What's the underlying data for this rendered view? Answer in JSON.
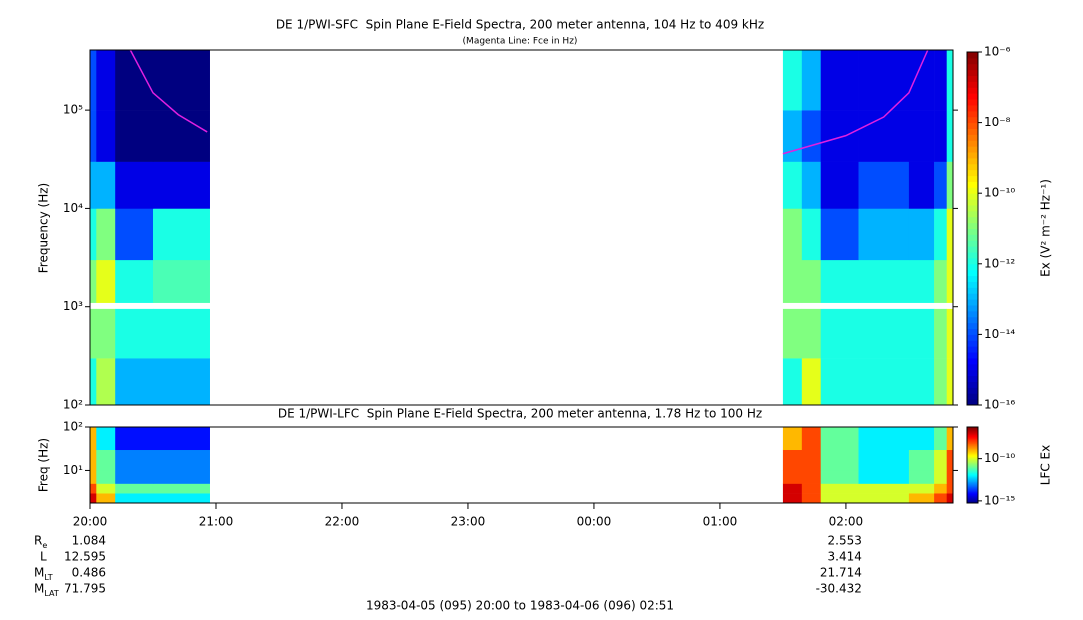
{
  "chart_data": [
    {
      "type": "heatmap",
      "title": "DE 1/PWI-SFC  Spin Plane E-Field Spectra, 200 meter antenna, 104 Hz to 409 kHz",
      "subtitle": "(Magenta Line: Fce in Hz)",
      "ylabel": "Frequency (Hz)",
      "log_y": true,
      "xlim": [
        0,
        6.85
      ],
      "ylim": [
        100,
        409000
      ],
      "yticks": [
        {
          "value": 100,
          "label": "10²"
        },
        {
          "value": 1000,
          "label": "10³"
        },
        {
          "value": 10000,
          "label": "10⁴"
        },
        {
          "value": 100000,
          "label": "10⁵"
        }
      ],
      "x_edges": [
        0,
        0.05,
        0.2,
        0.5,
        0.95,
        5.5,
        5.65,
        5.8,
        6.1,
        6.5,
        6.7,
        6.8,
        6.85
      ],
      "y_edges": [
        100,
        300,
        950,
        1100,
        3000,
        10000,
        30000,
        100000,
        409000
      ],
      "z": [
        [
          1e-12,
          3e-11,
          1e-13,
          1e-13,
          null,
          1e-12,
          1e-10,
          1e-12,
          1e-12,
          1e-12,
          1e-11,
          1e-10
        ],
        [
          1e-11,
          1e-11,
          1e-12,
          1e-12,
          null,
          1e-11,
          1e-11,
          1e-12,
          1e-12,
          1e-12,
          1e-11,
          1e-10
        ],
        [
          null,
          null,
          null,
          null,
          null,
          null,
          null,
          null,
          null,
          null,
          null,
          null
        ],
        [
          1e-11,
          1e-10,
          1e-12,
          3e-12,
          null,
          1e-11,
          1e-11,
          1e-12,
          1e-12,
          1e-12,
          1e-11,
          1e-10
        ],
        [
          1e-12,
          1e-11,
          1e-14,
          1e-12,
          null,
          1e-11,
          1e-12,
          1e-14,
          1e-13,
          1e-13,
          1e-12,
          1e-10
        ],
        [
          1e-13,
          1e-13,
          1e-15,
          1e-15,
          null,
          1e-12,
          1e-13,
          1e-15,
          1e-14,
          1e-15,
          1e-14,
          1e-11
        ],
        [
          1e-14,
          1e-15,
          1e-16,
          1e-16,
          null,
          1e-13,
          1e-14,
          1e-15,
          1e-15,
          1e-15,
          1e-15,
          1e-12
        ],
        [
          1e-14,
          1e-15,
          1e-16,
          1e-16,
          null,
          1e-12,
          1e-13,
          1e-15,
          1e-15,
          1e-15,
          1e-15,
          1e-12
        ]
      ],
      "colorbar": {
        "label": "Ex (V² m⁻² Hz⁻¹)",
        "log": true,
        "lim": [
          1e-16,
          1e-06
        ],
        "ticks": [
          {
            "value": 1e-16,
            "label": "10⁻¹⁶"
          },
          {
            "value": 1e-14,
            "label": "10⁻¹⁴"
          },
          {
            "value": 1e-12,
            "label": "10⁻¹²"
          },
          {
            "value": 1e-10,
            "label": "10⁻¹⁰"
          },
          {
            "value": 1e-08,
            "label": "10⁻⁸"
          },
          {
            "value": 1e-06,
            "label": "10⁻⁶"
          }
        ]
      },
      "fce": {
        "color": "#e020e0",
        "segments": [
          {
            "x": [
              0.32,
              0.5,
              0.7,
              0.93
            ],
            "values": [
              409000,
              150000,
              90000,
              60000
            ]
          },
          {
            "x": [
              5.5,
              6.0,
              6.3,
              6.5,
              6.65
            ],
            "values": [
              36000,
              55000,
              85000,
              150000,
              409000
            ]
          }
        ]
      }
    },
    {
      "type": "heatmap",
      "title": "DE 1/PWI-LFC  Spin Plane E-Field Spectra, 200 meter antenna, 1.78 Hz to 100 Hz",
      "ylabel": "Freq (Hz)",
      "log_y": true,
      "xlim": [
        0,
        6.85
      ],
      "xticks": [
        {
          "value": 0,
          "label": "20:00"
        },
        {
          "value": 1,
          "label": "21:00"
        },
        {
          "value": 2,
          "label": "22:00"
        },
        {
          "value": 3,
          "label": "23:00"
        },
        {
          "value": 4,
          "label": "00:00"
        },
        {
          "value": 5,
          "label": "01:00"
        },
        {
          "value": 6,
          "label": "02:00"
        }
      ],
      "ylim": [
        1.78,
        100
      ],
      "yticks": [
        {
          "value": 10,
          "label": "10¹"
        },
        {
          "value": 100,
          "label": "10²"
        }
      ],
      "x_edges": [
        0,
        0.05,
        0.2,
        0.5,
        0.95,
        5.5,
        5.65,
        5.8,
        6.1,
        6.5,
        6.7,
        6.8,
        6.85
      ],
      "y_edges": [
        1.78,
        3,
        5,
        10,
        30,
        100
      ],
      "z": [
        [
          1e-07,
          1e-09,
          1e-12,
          1e-12,
          null,
          1e-07,
          1e-08,
          1e-10,
          1e-10,
          1e-09,
          1e-08,
          1e-07
        ],
        [
          1e-08,
          1e-10,
          1e-11,
          1e-11,
          null,
          1e-07,
          1e-08,
          1e-10,
          1e-10,
          1e-10,
          1e-09,
          1e-08
        ],
        [
          1e-09,
          1e-11,
          1e-13,
          1e-13,
          null,
          1e-08,
          1e-08,
          1e-11,
          1e-12,
          1e-11,
          1e-10,
          1e-08
        ],
        [
          1e-09,
          1e-11,
          1e-13,
          1e-13,
          null,
          1e-08,
          1e-08,
          1e-11,
          1e-12,
          1e-11,
          1e-10,
          1e-08
        ],
        [
          1e-09,
          1e-12,
          1e-14,
          1e-14,
          null,
          1e-09,
          1e-08,
          1e-11,
          1e-12,
          1e-12,
          1e-11,
          1e-09
        ]
      ],
      "colorbar": {
        "label": "LFC Ex",
        "log": true,
        "lim": [
          5.6e-16,
          5.6e-07
        ],
        "ticks": [
          {
            "value": 1e-15,
            "label": "10⁻¹⁵"
          },
          {
            "value": 1e-10,
            "label": "10⁻¹⁰"
          }
        ]
      }
    }
  ],
  "ephemeris": {
    "x": [
      0,
      6
    ],
    "rows": [
      {
        "label": "R",
        "sub": "e",
        "values": [
          1.084,
          2.553
        ]
      },
      {
        "label": "L",
        "values": [
          12.595,
          3.414
        ]
      },
      {
        "label": "M",
        "sub": "LT",
        "values": [
          0.486,
          21.714
        ]
      },
      {
        "label": "M",
        "sub": "LAT",
        "values": [
          71.795,
          -30.432
        ]
      }
    ]
  },
  "footer": "1983-04-05 (095) 20:00 to 1983-04-06 (096) 02:51"
}
